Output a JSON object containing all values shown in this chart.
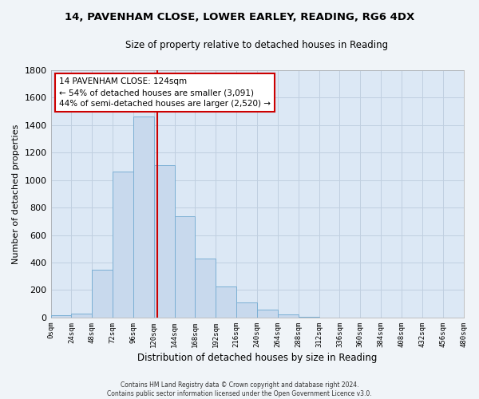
{
  "title1": "14, PAVENHAM CLOSE, LOWER EARLEY, READING, RG6 4DX",
  "title2": "Size of property relative to detached houses in Reading",
  "xlabel": "Distribution of detached houses by size in Reading",
  "ylabel": "Number of detached properties",
  "bin_edges": [
    0,
    24,
    48,
    72,
    96,
    120,
    144,
    168,
    192,
    216,
    240,
    264,
    288,
    312,
    336,
    360,
    384,
    408,
    432,
    456,
    480
  ],
  "counts": [
    15,
    30,
    350,
    1060,
    1460,
    1110,
    735,
    430,
    225,
    110,
    55,
    20,
    5,
    0,
    0,
    0,
    0,
    0,
    0,
    0
  ],
  "bar_color": "#c8d9ed",
  "bar_edge_color": "#7bafd4",
  "property_size": 124,
  "vline_color": "#cc0000",
  "annotation_line1": "14 PAVENHAM CLOSE: 124sqm",
  "annotation_line2": "← 54% of detached houses are smaller (3,091)",
  "annotation_line3": "44% of semi-detached houses are larger (2,520) →",
  "annotation_box_color": "#ffffff",
  "annotation_box_edge": "#cc0000",
  "ylim": [
    0,
    1800
  ],
  "yticks": [
    0,
    200,
    400,
    600,
    800,
    1000,
    1200,
    1400,
    1600,
    1800
  ],
  "xtick_labels": [
    "0sqm",
    "24sqm",
    "48sqm",
    "72sqm",
    "96sqm",
    "120sqm",
    "144sqm",
    "168sqm",
    "192sqm",
    "216sqm",
    "240sqm",
    "264sqm",
    "288sqm",
    "312sqm",
    "336sqm",
    "360sqm",
    "384sqm",
    "408sqm",
    "432sqm",
    "456sqm",
    "480sqm"
  ],
  "footer1": "Contains HM Land Registry data © Crown copyright and database right 2024.",
  "footer2": "Contains public sector information licensed under the Open Government Licence v3.0.",
  "grid_color": "#c0cfe0",
  "background_color": "#dce8f5",
  "fig_facecolor": "#f0f4f8"
}
